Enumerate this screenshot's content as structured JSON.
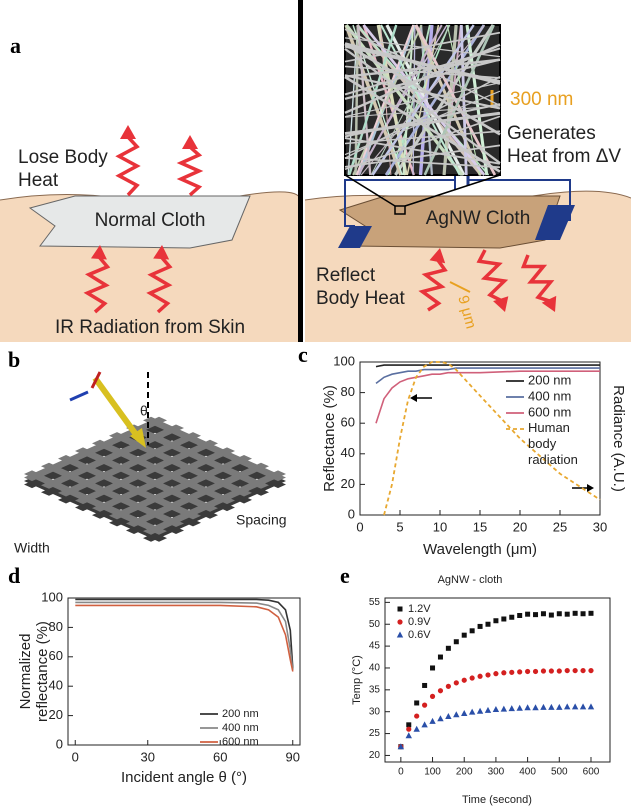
{
  "panels": {
    "a": {
      "label": "a",
      "lose_body_heat": [
        "Lose Body",
        "Heat"
      ],
      "normal_cloth": "Normal Cloth",
      "ir_radiation": "IR Radiation from Skin",
      "scale_300": "300 nm",
      "generates_heat": [
        "Generates",
        "Heat from ΔV"
      ],
      "agnw_cloth": "AgNW Cloth",
      "reflect_body_heat": [
        "Reflect",
        "Body Heat"
      ],
      "scale_9": "9 μm"
    },
    "b": {
      "label": "b",
      "theta": "θ",
      "width": "Width",
      "spacing": "Spacing"
    },
    "c": {
      "label": "c"
    },
    "d": {
      "label": "d"
    },
    "e": {
      "label": "e"
    }
  },
  "chart_data": [
    {
      "type": "line",
      "xlabel": "Wavelength (μm)",
      "ylabel": "Reflectance (%)",
      "y2label": "Radiance (A.U.)",
      "x": [
        2,
        3,
        4,
        5,
        6,
        7,
        8,
        9,
        10,
        11,
        12,
        15,
        20,
        25,
        30
      ],
      "xlim": [
        0,
        30
      ],
      "xticks": [
        0,
        5,
        10,
        15,
        20,
        25,
        30
      ],
      "ylim": [
        0,
        100
      ],
      "yticks": [
        0,
        20,
        40,
        60,
        80,
        100
      ],
      "y2lim": [
        0,
        100
      ],
      "legend": "upper right",
      "series": [
        {
          "name": "200 nm",
          "color": "#222222",
          "values": [
            97,
            98,
            98,
            98,
            98,
            98,
            98,
            98,
            98,
            98,
            98,
            98,
            98,
            98,
            98
          ]
        },
        {
          "name": "400 nm",
          "color": "#5a6fa0",
          "values": [
            86,
            90,
            92,
            93,
            94,
            94,
            95,
            95,
            95,
            95,
            96,
            96,
            96,
            96,
            96
          ]
        },
        {
          "name": "600 nm",
          "color": "#d0607a",
          "values": [
            60,
            76,
            83,
            87,
            89,
            90,
            91,
            92,
            92,
            93,
            93,
            93,
            94,
            94,
            94
          ]
        },
        {
          "name": "Human body radiation",
          "color": "#e8a830",
          "dash": true,
          "axis": "y2",
          "values": [
            null,
            0,
            20,
            50,
            75,
            90,
            97,
            100,
            100,
            99,
            95,
            78,
            50,
            27,
            10
          ]
        }
      ]
    },
    {
      "type": "line",
      "xlabel": "Incident angle θ (°)",
      "ylabel": [
        "Normalized",
        "reflectance (%)"
      ],
      "x": [
        0,
        30,
        60,
        75,
        80,
        84,
        87,
        89,
        90
      ],
      "xlim": [
        -3,
        93
      ],
      "xticks": [
        0,
        30,
        60,
        90
      ],
      "ylim": [
        0,
        100
      ],
      "yticks": [
        0,
        20,
        40,
        60,
        80,
        100
      ],
      "legend": "lower right",
      "series": [
        {
          "name": "200 nm",
          "color": "#333333",
          "values": [
            99,
            99,
            99,
            99,
            98.5,
            97,
            92,
            78,
            52
          ]
        },
        {
          "name": "400 nm",
          "color": "#888888",
          "values": [
            97,
            97,
            97,
            96.5,
            95,
            92,
            84,
            65,
            51
          ]
        },
        {
          "name": "600 nm",
          "color": "#d06040",
          "values": [
            95,
            95,
            95,
            94,
            92,
            87,
            75,
            58,
            50
          ]
        }
      ]
    },
    {
      "type": "scatter",
      "title": "AgNW - cloth",
      "xlabel": "Time (second)",
      "ylabel": "Temp (°C)",
      "x": [
        0,
        25,
        50,
        75,
        100,
        125,
        150,
        175,
        200,
        225,
        250,
        275,
        300,
        325,
        350,
        375,
        400,
        425,
        450,
        475,
        500,
        525,
        550,
        575,
        600
      ],
      "xlim": [
        -50,
        660
      ],
      "xticks": [
        0,
        100,
        200,
        300,
        400,
        500,
        600
      ],
      "ylim": [
        18.5,
        56
      ],
      "yticks": [
        20,
        25,
        30,
        35,
        40,
        45,
        50,
        55
      ],
      "legend": "upper left",
      "series": [
        {
          "name": "1.2V",
          "color": "#111111",
          "marker": "square",
          "values": [
            22,
            27,
            32,
            36,
            40,
            42.5,
            44.5,
            46,
            47.5,
            48.5,
            49.5,
            50,
            50.8,
            51.2,
            51.6,
            52,
            52.3,
            52.2,
            52.4,
            52.1,
            52.4,
            52.3,
            52.5,
            52.4,
            52.5
          ]
        },
        {
          "name": "0.9V",
          "color": "#d42020",
          "marker": "circle",
          "values": [
            22,
            26,
            29,
            31.5,
            33.5,
            34.8,
            35.8,
            36.6,
            37.2,
            37.7,
            38.1,
            38.4,
            38.7,
            38.9,
            39,
            39.1,
            39.2,
            39.2,
            39.3,
            39.3,
            39.3,
            39.4,
            39.4,
            39.4,
            39.4
          ]
        },
        {
          "name": "0.6V",
          "color": "#2a4fa8",
          "marker": "triangle",
          "values": [
            22,
            24.5,
            26,
            27,
            27.8,
            28.4,
            28.9,
            29.3,
            29.6,
            29.9,
            30.1,
            30.3,
            30.5,
            30.6,
            30.7,
            30.8,
            30.9,
            30.9,
            31,
            31,
            31,
            31.1,
            31.1,
            31.1,
            31.1
          ]
        }
      ]
    }
  ]
}
